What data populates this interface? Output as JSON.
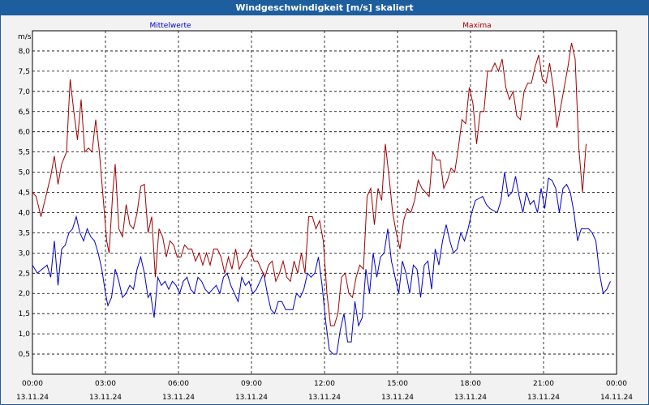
{
  "window": {
    "title": "Windgeschwindigkeit [m/s] skaliert"
  },
  "colors": {
    "titlebar": "#1d5e9e",
    "mean": "#0000c8",
    "max": "#a00000",
    "grid": "#000000",
    "plot_bg": "#ffffff"
  },
  "chart_data": {
    "type": "line",
    "title": "Windgeschwindigkeit [m/s] skaliert",
    "ylabel": "m/s",
    "ylim": [
      0,
      8.5
    ],
    "xlim": [
      0,
      24
    ],
    "yticks": [
      "0,5",
      "1,0",
      "1,5",
      "2,0",
      "2,5",
      "3,0",
      "3,5",
      "4,0",
      "4,5",
      "5,0",
      "5,5",
      "6,0",
      "6,5",
      "7,0",
      "7,5",
      "8,0"
    ],
    "xticks": [
      {
        "time": "00:00",
        "date": "13.11.24"
      },
      {
        "time": "03:00",
        "date": "13.11.24"
      },
      {
        "time": "06:00",
        "date": "13.11.24"
      },
      {
        "time": "09:00",
        "date": "13.11.24"
      },
      {
        "time": "12:00",
        "date": "13.11.24"
      },
      {
        "time": "15:00",
        "date": "13.11.24"
      },
      {
        "time": "18:00",
        "date": "13.11.24"
      },
      {
        "time": "21:00",
        "date": "13.11.24"
      },
      {
        "time": "00:00",
        "date": "14.11.24"
      }
    ],
    "grid": true,
    "x_unit": "hours since 13.11.24 00:00",
    "series": [
      {
        "name": "Mittelwerte",
        "color": "#0000c8",
        "points": [
          [
            0.0,
            2.7
          ],
          [
            0.2,
            2.5
          ],
          [
            0.4,
            2.6
          ],
          [
            0.6,
            2.7
          ],
          [
            0.75,
            2.4
          ],
          [
            0.9,
            3.3
          ],
          [
            1.05,
            2.2
          ],
          [
            1.2,
            3.1
          ],
          [
            1.35,
            3.2
          ],
          [
            1.5,
            3.5
          ],
          [
            1.65,
            3.6
          ],
          [
            1.8,
            3.9
          ],
          [
            1.95,
            3.5
          ],
          [
            2.1,
            3.3
          ],
          [
            2.25,
            3.6
          ],
          [
            2.4,
            3.4
          ],
          [
            2.55,
            3.3
          ],
          [
            2.7,
            3.0
          ],
          [
            2.85,
            2.6
          ],
          [
            3.0,
            2.0
          ],
          [
            3.1,
            1.7
          ],
          [
            3.25,
            1.9
          ],
          [
            3.4,
            2.6
          ],
          [
            3.55,
            2.3
          ],
          [
            3.7,
            1.9
          ],
          [
            3.85,
            2.0
          ],
          [
            4.0,
            2.2
          ],
          [
            4.15,
            2.1
          ],
          [
            4.3,
            2.6
          ],
          [
            4.45,
            2.9
          ],
          [
            4.6,
            2.5
          ],
          [
            4.75,
            1.9
          ],
          [
            4.85,
            2.0
          ],
          [
            5.0,
            1.4
          ],
          [
            5.15,
            2.4
          ],
          [
            5.3,
            2.2
          ],
          [
            5.45,
            2.3
          ],
          [
            5.6,
            2.1
          ],
          [
            5.75,
            2.3
          ],
          [
            5.9,
            2.2
          ],
          [
            6.05,
            2.0
          ],
          [
            6.2,
            2.3
          ],
          [
            6.35,
            2.4
          ],
          [
            6.5,
            2.1
          ],
          [
            6.65,
            2.0
          ],
          [
            6.8,
            2.4
          ],
          [
            6.95,
            2.3
          ],
          [
            7.1,
            2.1
          ],
          [
            7.25,
            2.0
          ],
          [
            7.4,
            2.1
          ],
          [
            7.55,
            2.2
          ],
          [
            7.7,
            2.0
          ],
          [
            7.85,
            2.4
          ],
          [
            8.0,
            2.5
          ],
          [
            8.15,
            2.2
          ],
          [
            8.3,
            2.0
          ],
          [
            8.45,
            1.8
          ],
          [
            8.6,
            2.4
          ],
          [
            8.75,
            2.2
          ],
          [
            8.9,
            2.3
          ],
          [
            9.05,
            2.0
          ],
          [
            9.2,
            2.1
          ],
          [
            9.35,
            2.3
          ],
          [
            9.5,
            2.5
          ],
          [
            9.65,
            2.0
          ],
          [
            9.8,
            1.6
          ],
          [
            9.95,
            1.5
          ],
          [
            10.1,
            1.8
          ],
          [
            10.25,
            1.8
          ],
          [
            10.4,
            1.6
          ],
          [
            10.55,
            1.6
          ],
          [
            10.7,
            1.6
          ],
          [
            10.85,
            2.0
          ],
          [
            11.0,
            1.9
          ],
          [
            11.15,
            2.1
          ],
          [
            11.3,
            2.5
          ],
          [
            11.45,
            2.4
          ],
          [
            11.6,
            2.5
          ],
          [
            11.75,
            2.9
          ],
          [
            11.9,
            2.2
          ],
          [
            12.05,
            1.3
          ],
          [
            12.2,
            0.6
          ],
          [
            12.35,
            0.5
          ],
          [
            12.5,
            0.5
          ],
          [
            12.65,
            1.1
          ],
          [
            12.8,
            1.5
          ],
          [
            12.95,
            0.8
          ],
          [
            13.1,
            0.8
          ],
          [
            13.25,
            1.8
          ],
          [
            13.4,
            1.2
          ],
          [
            13.55,
            1.4
          ],
          [
            13.7,
            2.6
          ],
          [
            13.85,
            2.0
          ],
          [
            14.0,
            3.0
          ],
          [
            14.15,
            2.4
          ],
          [
            14.3,
            2.9
          ],
          [
            14.45,
            3.0
          ],
          [
            14.6,
            3.6
          ],
          [
            14.75,
            2.8
          ],
          [
            14.9,
            2.4
          ],
          [
            15.05,
            2.0
          ],
          [
            15.2,
            2.8
          ],
          [
            15.35,
            2.5
          ],
          [
            15.5,
            2.0
          ],
          [
            15.65,
            2.7
          ],
          [
            15.8,
            2.6
          ],
          [
            15.95,
            1.9
          ],
          [
            16.1,
            2.7
          ],
          [
            16.25,
            2.8
          ],
          [
            16.4,
            2.1
          ],
          [
            16.55,
            3.1
          ],
          [
            16.7,
            2.7
          ],
          [
            16.85,
            3.3
          ],
          [
            17.0,
            3.7
          ],
          [
            17.15,
            3.3
          ],
          [
            17.3,
            3.0
          ],
          [
            17.45,
            3.1
          ],
          [
            17.6,
            3.5
          ],
          [
            17.75,
            3.3
          ],
          [
            17.9,
            3.6
          ],
          [
            18.05,
            4.0
          ],
          [
            18.2,
            4.3
          ],
          [
            18.35,
            4.35
          ],
          [
            18.5,
            4.4
          ],
          [
            18.65,
            4.2
          ],
          [
            18.8,
            4.1
          ],
          [
            18.95,
            4.05
          ],
          [
            19.1,
            4.0
          ],
          [
            19.25,
            4.3
          ],
          [
            19.4,
            5.0
          ],
          [
            19.55,
            4.4
          ],
          [
            19.7,
            4.5
          ],
          [
            19.85,
            4.9
          ],
          [
            20.0,
            4.4
          ],
          [
            20.15,
            4.0
          ],
          [
            20.3,
            4.5
          ],
          [
            20.45,
            4.2
          ],
          [
            20.6,
            4.3
          ],
          [
            20.75,
            4.0
          ],
          [
            20.9,
            4.6
          ],
          [
            21.05,
            4.1
          ],
          [
            21.2,
            4.85
          ],
          [
            21.35,
            4.8
          ],
          [
            21.5,
            4.6
          ],
          [
            21.65,
            4.0
          ],
          [
            21.8,
            4.6
          ],
          [
            21.95,
            4.7
          ],
          [
            22.1,
            4.5
          ],
          [
            22.25,
            4.0
          ],
          [
            22.4,
            3.3
          ],
          [
            22.55,
            3.6
          ],
          [
            22.7,
            3.6
          ],
          [
            22.85,
            3.6
          ],
          [
            23.0,
            3.5
          ],
          [
            23.15,
            3.3
          ],
          [
            23.3,
            2.5
          ],
          [
            23.45,
            2.0
          ],
          [
            23.6,
            2.1
          ],
          [
            23.75,
            2.3
          ]
        ]
      },
      {
        "name": "Maxima",
        "color": "#a00000",
        "points": [
          [
            0.0,
            4.5
          ],
          [
            0.15,
            4.4
          ],
          [
            0.35,
            3.9
          ],
          [
            0.55,
            4.4
          ],
          [
            0.75,
            4.9
          ],
          [
            0.9,
            5.4
          ],
          [
            1.05,
            4.7
          ],
          [
            1.2,
            5.2
          ],
          [
            1.4,
            5.5
          ],
          [
            1.55,
            7.3
          ],
          [
            1.7,
            6.5
          ],
          [
            1.85,
            5.8
          ],
          [
            2.0,
            6.8
          ],
          [
            2.15,
            5.5
          ],
          [
            2.3,
            5.6
          ],
          [
            2.45,
            5.5
          ],
          [
            2.6,
            6.3
          ],
          [
            2.75,
            5.5
          ],
          [
            2.9,
            4.4
          ],
          [
            3.05,
            3.3
          ],
          [
            3.15,
            3.0
          ],
          [
            3.3,
            4.5
          ],
          [
            3.4,
            5.2
          ],
          [
            3.55,
            3.6
          ],
          [
            3.7,
            3.4
          ],
          [
            3.85,
            4.2
          ],
          [
            4.0,
            3.7
          ],
          [
            4.15,
            3.6
          ],
          [
            4.3,
            4.0
          ],
          [
            4.45,
            4.65
          ],
          [
            4.6,
            4.7
          ],
          [
            4.75,
            3.5
          ],
          [
            4.9,
            3.9
          ],
          [
            5.05,
            2.4
          ],
          [
            5.2,
            3.6
          ],
          [
            5.35,
            3.4
          ],
          [
            5.5,
            2.9
          ],
          [
            5.65,
            3.3
          ],
          [
            5.8,
            3.2
          ],
          [
            5.95,
            2.9
          ],
          [
            6.1,
            2.9
          ],
          [
            6.25,
            3.2
          ],
          [
            6.4,
            3.1
          ],
          [
            6.55,
            3.1
          ],
          [
            6.7,
            2.8
          ],
          [
            6.85,
            3.0
          ],
          [
            7.0,
            2.7
          ],
          [
            7.15,
            3.0
          ],
          [
            7.3,
            2.7
          ],
          [
            7.45,
            3.1
          ],
          [
            7.6,
            3.1
          ],
          [
            7.75,
            2.9
          ],
          [
            7.9,
            2.5
          ],
          [
            8.05,
            2.9
          ],
          [
            8.2,
            2.6
          ],
          [
            8.35,
            3.1
          ],
          [
            8.5,
            2.6
          ],
          [
            8.65,
            2.8
          ],
          [
            8.8,
            2.9
          ],
          [
            8.95,
            3.1
          ],
          [
            9.1,
            2.8
          ],
          [
            9.25,
            2.8
          ],
          [
            9.4,
            2.6
          ],
          [
            9.55,
            2.4
          ],
          [
            9.7,
            2.7
          ],
          [
            9.85,
            2.8
          ],
          [
            10.0,
            2.3
          ],
          [
            10.15,
            2.5
          ],
          [
            10.3,
            2.8
          ],
          [
            10.45,
            2.4
          ],
          [
            10.6,
            2.3
          ],
          [
            10.75,
            2.8
          ],
          [
            10.9,
            2.5
          ],
          [
            11.05,
            3.0
          ],
          [
            11.2,
            2.5
          ],
          [
            11.35,
            3.9
          ],
          [
            11.5,
            3.9
          ],
          [
            11.65,
            3.6
          ],
          [
            11.8,
            3.8
          ],
          [
            11.95,
            3.3
          ],
          [
            12.1,
            2.0
          ],
          [
            12.25,
            1.2
          ],
          [
            12.4,
            1.2
          ],
          [
            12.55,
            1.5
          ],
          [
            12.7,
            2.4
          ],
          [
            12.85,
            2.5
          ],
          [
            13.0,
            2.0
          ],
          [
            13.15,
            1.9
          ],
          [
            13.3,
            2.4
          ],
          [
            13.45,
            2.7
          ],
          [
            13.6,
            2.6
          ],
          [
            13.75,
            4.4
          ],
          [
            13.9,
            4.6
          ],
          [
            14.05,
            3.7
          ],
          [
            14.2,
            4.6
          ],
          [
            14.35,
            4.3
          ],
          [
            14.5,
            5.7
          ],
          [
            14.65,
            4.9
          ],
          [
            14.8,
            4.0
          ],
          [
            14.95,
            3.5
          ],
          [
            15.1,
            3.1
          ],
          [
            15.25,
            3.8
          ],
          [
            15.4,
            4.1
          ],
          [
            15.55,
            4.0
          ],
          [
            15.7,
            4.3
          ],
          [
            15.85,
            4.8
          ],
          [
            16.0,
            4.6
          ],
          [
            16.15,
            4.5
          ],
          [
            16.3,
            4.4
          ],
          [
            16.45,
            5.5
          ],
          [
            16.6,
            5.3
          ],
          [
            16.75,
            5.3
          ],
          [
            16.9,
            4.6
          ],
          [
            17.05,
            4.8
          ],
          [
            17.2,
            5.1
          ],
          [
            17.35,
            5.0
          ],
          [
            17.5,
            5.6
          ],
          [
            17.65,
            6.3
          ],
          [
            17.8,
            6.2
          ],
          [
            17.95,
            7.1
          ],
          [
            18.1,
            6.7
          ],
          [
            18.25,
            5.7
          ],
          [
            18.4,
            6.5
          ],
          [
            18.55,
            6.5
          ],
          [
            18.7,
            7.5
          ],
          [
            18.85,
            7.5
          ],
          [
            19.0,
            7.7
          ],
          [
            19.15,
            7.5
          ],
          [
            19.3,
            7.8
          ],
          [
            19.45,
            7.1
          ],
          [
            19.6,
            6.8
          ],
          [
            19.75,
            7.0
          ],
          [
            19.9,
            6.4
          ],
          [
            20.05,
            6.3
          ],
          [
            20.2,
            7.0
          ],
          [
            20.35,
            7.2
          ],
          [
            20.5,
            7.2
          ],
          [
            20.65,
            7.6
          ],
          [
            20.8,
            7.9
          ],
          [
            20.95,
            7.3
          ],
          [
            21.1,
            7.2
          ],
          [
            21.25,
            7.7
          ],
          [
            21.4,
            7.1
          ],
          [
            21.55,
            6.1
          ],
          [
            21.7,
            6.6
          ],
          [
            21.85,
            7.1
          ],
          [
            22.0,
            7.6
          ],
          [
            22.15,
            8.2
          ],
          [
            22.3,
            7.8
          ],
          [
            22.45,
            5.6
          ],
          [
            22.6,
            4.5
          ],
          [
            22.75,
            5.7
          ]
        ]
      }
    ]
  }
}
